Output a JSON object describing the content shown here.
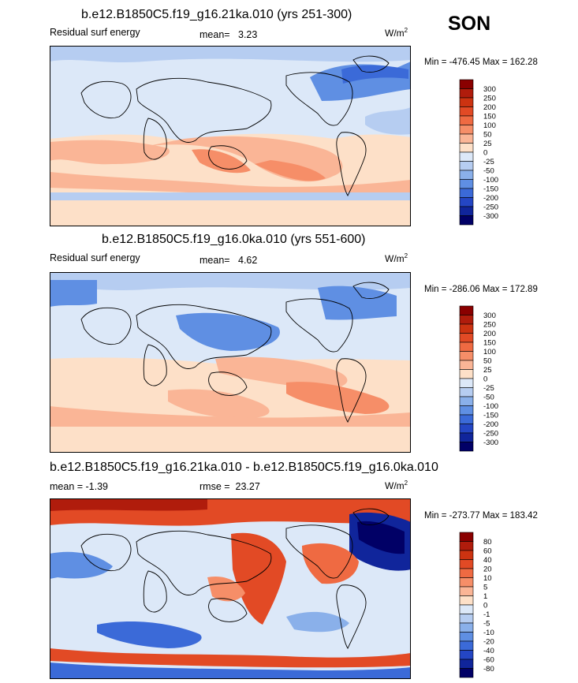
{
  "season": "SON",
  "units": {
    "base": "W/m",
    "exp": "2"
  },
  "chart_data": [
    {
      "type": "heatmap",
      "title": "b.e12.B1850C5.f19_g16.21ka.010 (yrs 251-300)",
      "left_label": "Residual surf energy",
      "stat_label": "mean=",
      "stat_value": "3.23",
      "minmax": "Min = -476.45 Max = 162.28",
      "levels": [
        "300",
        "250",
        "200",
        "150",
        "100",
        "50",
        "25",
        "0",
        "-25",
        "-50",
        "-100",
        "-150",
        "-200",
        "-250",
        "-300"
      ],
      "colors": [
        "#8a0000",
        "#b01c0c",
        "#cc3311",
        "#e24a25",
        "#ef6a42",
        "#f68e68",
        "#fab596",
        "#fde0c8",
        "#dce8f8",
        "#b6cdf1",
        "#8ab0ea",
        "#5f8fe3",
        "#3b6ad8",
        "#2446c4",
        "#10259b",
        "#010066"
      ]
    },
    {
      "type": "heatmap",
      "title": "b.e12.B1850C5.f19_g16.0ka.010 (yrs 551-600)",
      "left_label": "Residual surf energy",
      "stat_label": "mean=",
      "stat_value": "4.62",
      "minmax": "Min = -286.06 Max = 172.89",
      "levels": [
        "300",
        "250",
        "200",
        "150",
        "100",
        "50",
        "25",
        "0",
        "-25",
        "-50",
        "-100",
        "-150",
        "-200",
        "-250",
        "-300"
      ],
      "colors": [
        "#8a0000",
        "#b01c0c",
        "#cc3311",
        "#e24a25",
        "#ef6a42",
        "#f68e68",
        "#fab596",
        "#fde0c8",
        "#dce8f8",
        "#b6cdf1",
        "#8ab0ea",
        "#5f8fe3",
        "#3b6ad8",
        "#2446c4",
        "#10259b",
        "#010066"
      ]
    },
    {
      "type": "heatmap",
      "title": "b.e12.B1850C5.f19_g16.21ka.010 - b.e12.B1850C5.f19_g16.0ka.010",
      "left_label": "mean =  -1.39",
      "stat_label": "rmse =",
      "stat_value": "23.27",
      "minmax": "Min = -273.77 Max = 183.42",
      "levels": [
        "80",
        "60",
        "40",
        "20",
        "10",
        "5",
        "1",
        "0",
        "-1",
        "-5",
        "-10",
        "-20",
        "-40",
        "-60",
        "-80"
      ],
      "colors": [
        "#8a0000",
        "#b01c0c",
        "#cc3311",
        "#e24a25",
        "#ef6a42",
        "#f68e68",
        "#fab596",
        "#fde0c8",
        "#dce8f8",
        "#b6cdf1",
        "#8ab0ea",
        "#5f8fe3",
        "#3b6ad8",
        "#2446c4",
        "#10259b",
        "#010066"
      ]
    }
  ]
}
